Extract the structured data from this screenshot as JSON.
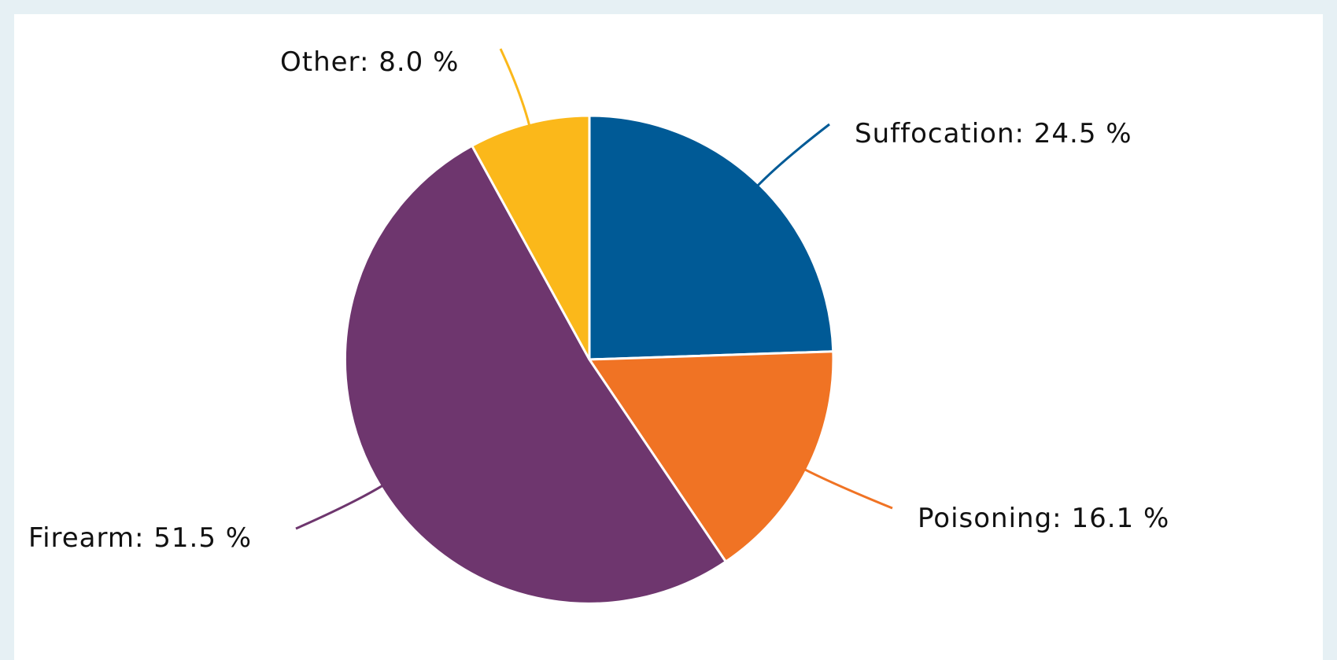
{
  "chart_data": {
    "type": "pie",
    "start_angle_deg": 0,
    "direction": "clockwise",
    "slices": [
      {
        "label": "Suffocation",
        "value": 24.5,
        "display": "Suffocation: 24.5 %",
        "color": "#005a96"
      },
      {
        "label": "Poisoning",
        "value": 16.1,
        "display": "Poisoning: 16.1 %",
        "color": "#f07324"
      },
      {
        "label": "Firearm",
        "value": 51.5,
        "display": "Firearm: 51.5 %",
        "color": "#6e366e"
      },
      {
        "label": "Other",
        "value": 8.0,
        "display": "Other: 8.0 %",
        "color": "#fbb81a"
      }
    ]
  }
}
